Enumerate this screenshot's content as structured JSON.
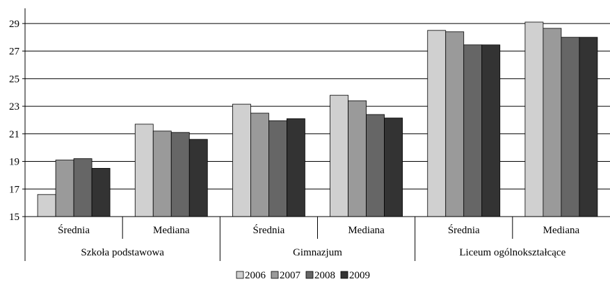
{
  "chart_data": {
    "type": "bar",
    "groups": [
      {
        "label": "Szkoła podstawowa",
        "subcategories": [
          "Średnia",
          "Mediana"
        ]
      },
      {
        "label": "Gimnazjum",
        "subcategories": [
          "Średnia",
          "Mediana"
        ]
      },
      {
        "label": "Liceum ogólnokształcące",
        "subcategories": [
          "Średnia",
          "Mediana"
        ]
      }
    ],
    "categories": [
      "Średnia",
      "Mediana",
      "Średnia",
      "Mediana",
      "Średnia",
      "Mediana"
    ],
    "series": [
      {
        "name": "2006",
        "color": "#d0d0d0",
        "values": [
          16.6,
          21.7,
          23.15,
          23.8,
          28.5,
          29.1
        ]
      },
      {
        "name": "2007",
        "color": "#9a9a9a",
        "values": [
          19.1,
          21.2,
          22.5,
          23.4,
          28.4,
          28.65
        ]
      },
      {
        "name": "2008",
        "color": "#666666",
        "values": [
          19.2,
          21.1,
          21.95,
          22.4,
          27.45,
          28.0
        ]
      },
      {
        "name": "2009",
        "color": "#333333",
        "values": [
          18.5,
          20.6,
          22.1,
          22.15,
          27.45,
          28.0
        ]
      }
    ],
    "yticks": [
      15,
      17,
      19,
      21,
      23,
      25,
      27,
      29
    ],
    "ylim": [
      15,
      30
    ],
    "grid": true,
    "legend_position": "bottom-center",
    "title": "",
    "xlabel": "",
    "ylabel": ""
  }
}
